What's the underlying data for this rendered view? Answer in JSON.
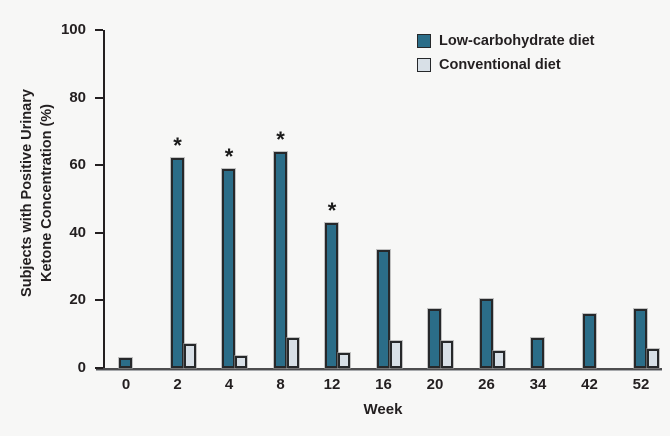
{
  "figure": {
    "background_color": "#f7f7f6",
    "text_color": "#231f20"
  },
  "chart_data": {
    "type": "bar",
    "title": "",
    "xlabel": "Week",
    "ylabel": "Subjects with Positive Urinary Ketone Concentration (%)",
    "ylabel_lines": [
      "Subjects with Positive Urinary",
      "Ketone Concentration (%)"
    ],
    "categories": [
      "0",
      "2",
      "4",
      "8",
      "12",
      "16",
      "20",
      "26",
      "34",
      "42",
      "52"
    ],
    "series": [
      {
        "name": "Low-carbohydrate diet",
        "color": "#2b6d88",
        "values": [
          3,
          62,
          59,
          64,
          43,
          35,
          17.5,
          20.5,
          9,
          16,
          17.5
        ]
      },
      {
        "name": "Conventional diet",
        "color": "#d8e0e7",
        "values": [
          0,
          7,
          3.5,
          9,
          4.5,
          8,
          8,
          5,
          0,
          0,
          5.5
        ]
      }
    ],
    "annotations": [
      {
        "symbol": "*",
        "series": "Low-carbohydrate diet",
        "categories": [
          "2",
          "4",
          "8",
          "12"
        ]
      }
    ],
    "ylim": [
      0,
      100
    ],
    "yticks": [
      0,
      20,
      40,
      60,
      80,
      100
    ],
    "grid": false,
    "legend_position": "top-right",
    "bar_border_color": "#26282a",
    "note": "Missing bars indicate a value of 0 / not shown"
  }
}
